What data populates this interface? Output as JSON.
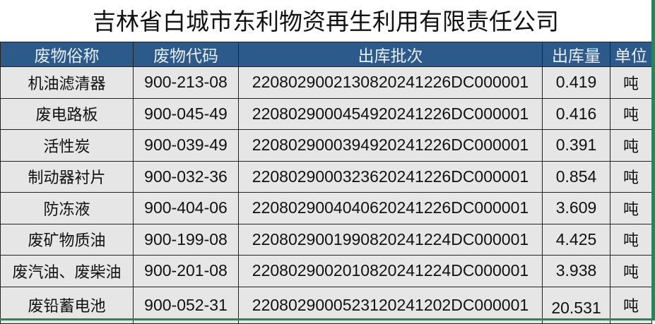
{
  "title": "吉林省白城市东利物资再生利用有限责任公司",
  "headers": [
    "废物俗称",
    "废物代码",
    "出库批次",
    "出库量",
    "单位"
  ],
  "rows": [
    [
      "机油滤清器",
      "900-213-08",
      "2208029002130820241226DC000001",
      "0.419",
      "吨"
    ],
    [
      "废电路板",
      "900-045-49",
      "2208029000454920241226DC000001",
      "0.416",
      "吨"
    ],
    [
      "活性炭",
      "900-039-49",
      "2208029000394920241226DC000001",
      "0.391",
      "吨"
    ],
    [
      "制动器衬片",
      "900-032-36",
      "2208029000323620241226DC000001",
      "0.854",
      "吨"
    ],
    [
      "防冻液",
      "900-404-06",
      "2208029004040620241226DC000001",
      "3.609",
      "吨"
    ],
    [
      "废矿物质油",
      "900-199-08",
      "2208029001990820241224DC000001",
      "4.425",
      "吨"
    ],
    [
      "废汽油、废柴油",
      "900-201-08",
      "2208029002010820241224DC000001",
      "3.938",
      "吨"
    ],
    [
      "废铅蓄电池",
      "900-052-31",
      "2208029000523120241202DC000001",
      "20.531",
      "吨"
    ]
  ],
  "colors": {
    "header_bg": "#2c5a8a",
    "row_bg": "#e6e6e6",
    "border_accent": "#1e8a5a"
  }
}
